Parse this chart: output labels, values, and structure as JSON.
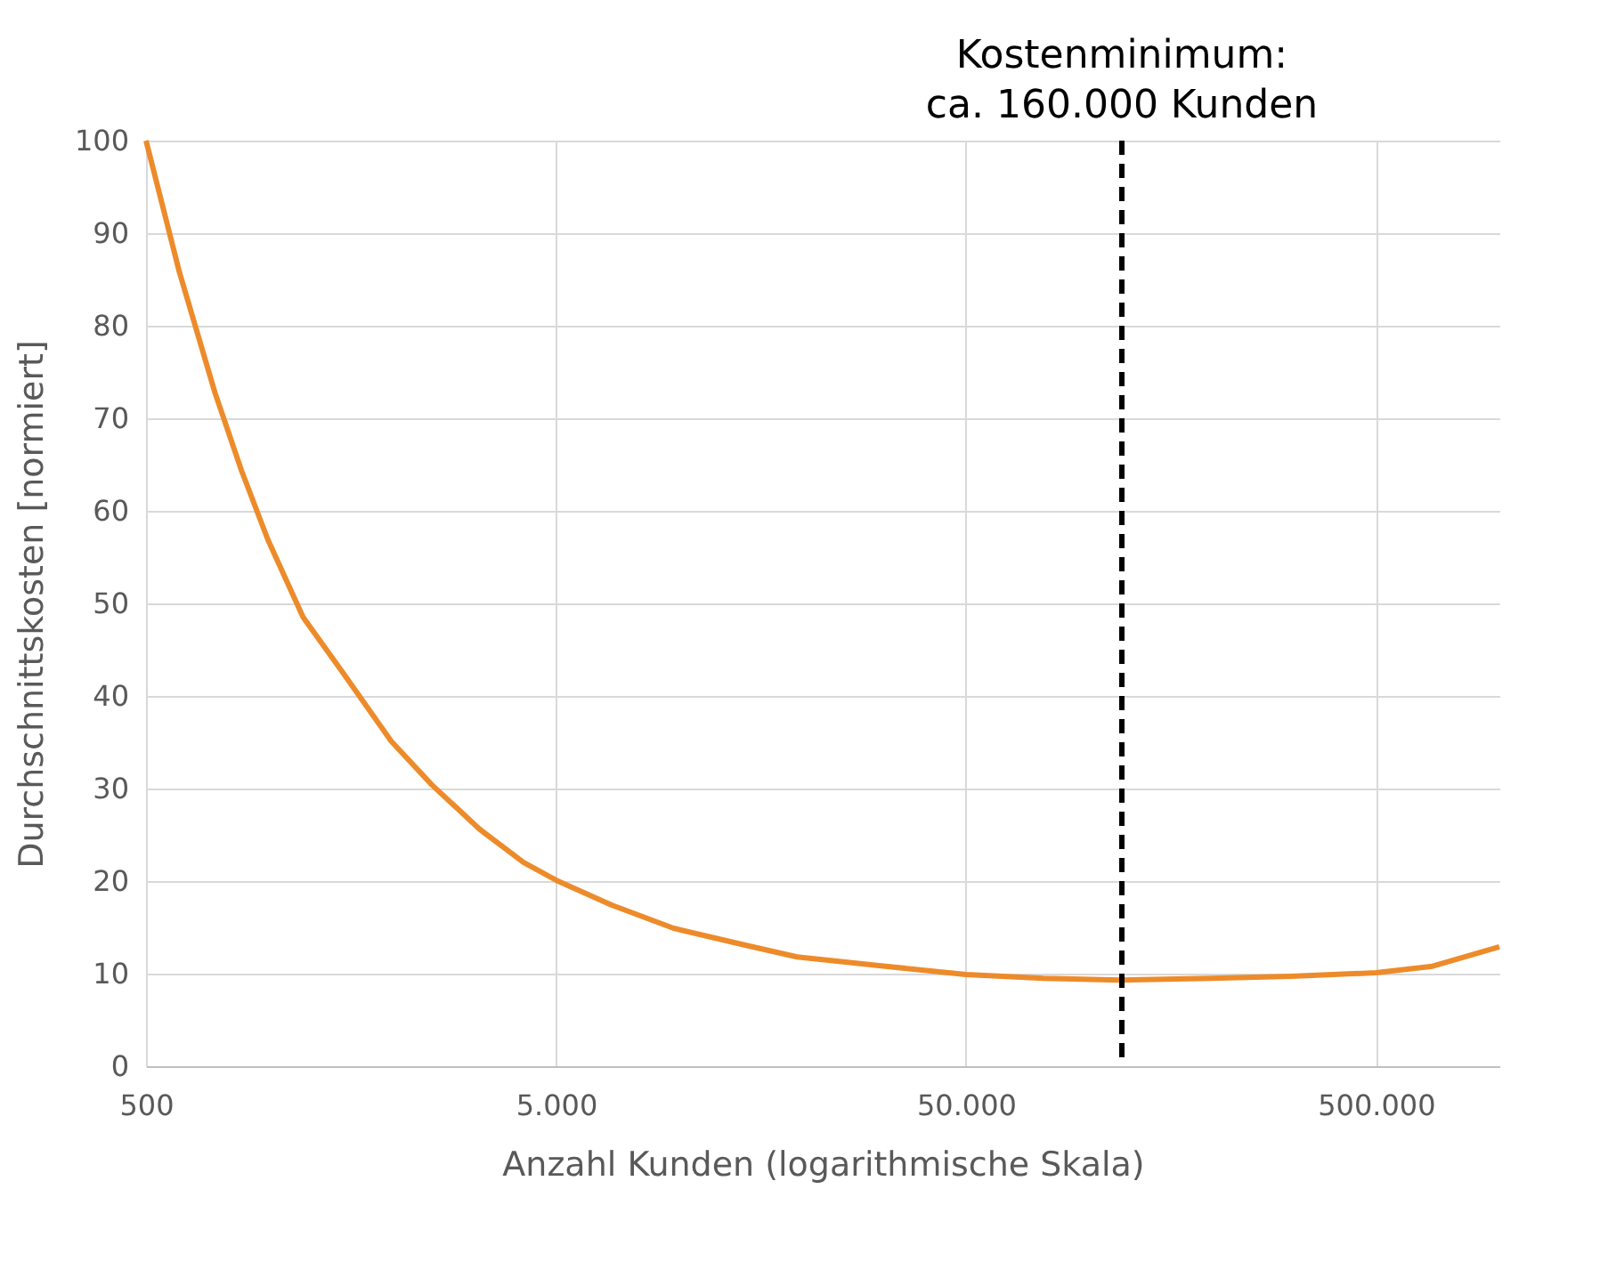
{
  "chart_data": {
    "type": "line",
    "xlabel": "Anzahl Kunden (logarithmische Skala)",
    "ylabel": "Durchschnittskosten [normiert]",
    "log": "x",
    "grid": true,
    "marker": "none",
    "line_style": "solid",
    "xlim": [
      500,
      1000000
    ],
    "xticks": [
      {
        "value": 500,
        "label": "500"
      },
      {
        "value": 5000,
        "label": "5.000"
      },
      {
        "value": 50000,
        "label": "50.000"
      },
      {
        "value": 500000,
        "label": "500.000"
      }
    ],
    "ylim": [
      0,
      100
    ],
    "yticks": [
      0,
      10,
      20,
      30,
      40,
      50,
      60,
      70,
      80,
      90,
      100
    ],
    "series": [
      {
        "color": "#ed8b2a",
        "x": [
          500,
          603,
          736,
          854,
          991,
          1208,
          1517,
          1983,
          2490,
          3256,
          4170,
          5000,
          6840,
          9680,
          14400,
          19370,
          31800,
          50000,
          77300,
          118500,
          198000,
          310000,
          500000,
          687000,
          1000000
        ],
        "values": [
          100,
          85.8,
          72.8,
          64.4,
          56.9,
          48.5,
          42.4,
          35.1,
          30.4,
          25.6,
          22.0,
          20.1,
          17.4,
          14.9,
          13.1,
          11.8,
          10.8,
          9.9,
          9.5,
          9.3,
          9.5,
          9.7,
          10.1,
          10.8,
          12.9
        ]
      }
    ],
    "ref_lines": [
      {
        "axis": "x",
        "value": 120000,
        "label": "Kostenminimum:\nca. 160.000 Kunden",
        "color": "#000000",
        "line_style": "dashed"
      }
    ]
  }
}
